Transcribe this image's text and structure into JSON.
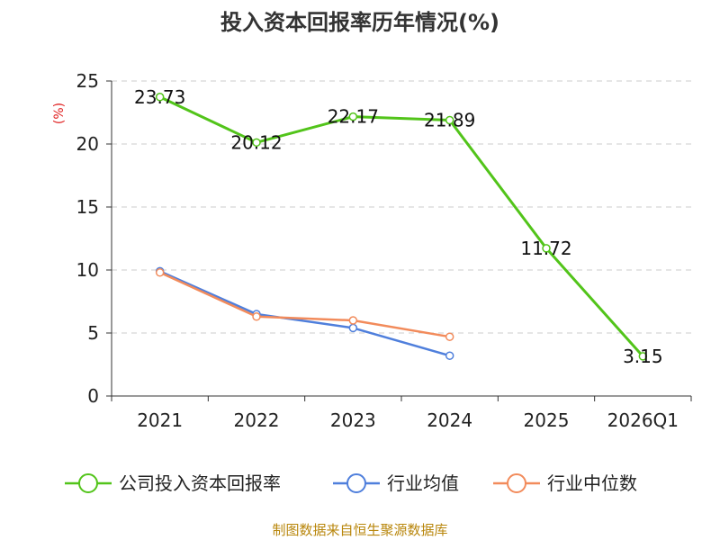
{
  "chart_data": {
    "type": "line",
    "title": "投入资本回报率历年情况(%)",
    "ylabel": "(%)",
    "xlabel": "",
    "categories": [
      "2021",
      "2022",
      "2023",
      "2024",
      "2025",
      "2026Q1"
    ],
    "ylim": [
      0,
      25
    ],
    "yticks": [
      0,
      5,
      10,
      15,
      20,
      25
    ],
    "grid": true,
    "legend_position": "bottom",
    "series": [
      {
        "name": "公司投入资本回报率",
        "color": "#52c41a",
        "values": [
          23.73,
          20.12,
          22.17,
          21.89,
          11.72,
          3.15
        ],
        "labels": [
          "23.73",
          "20.12",
          "22.17",
          "21.89",
          "11.72",
          "3.15"
        ]
      },
      {
        "name": "行业均值",
        "color": "#4f7fdc",
        "values": [
          9.9,
          6.5,
          5.4,
          3.2,
          null,
          null
        ]
      },
      {
        "name": "行业中位数",
        "color": "#f28b5b",
        "values": [
          9.8,
          6.3,
          6.0,
          4.7,
          null,
          null
        ]
      }
    ]
  },
  "source": "制图数据来自恒生聚源数据库"
}
